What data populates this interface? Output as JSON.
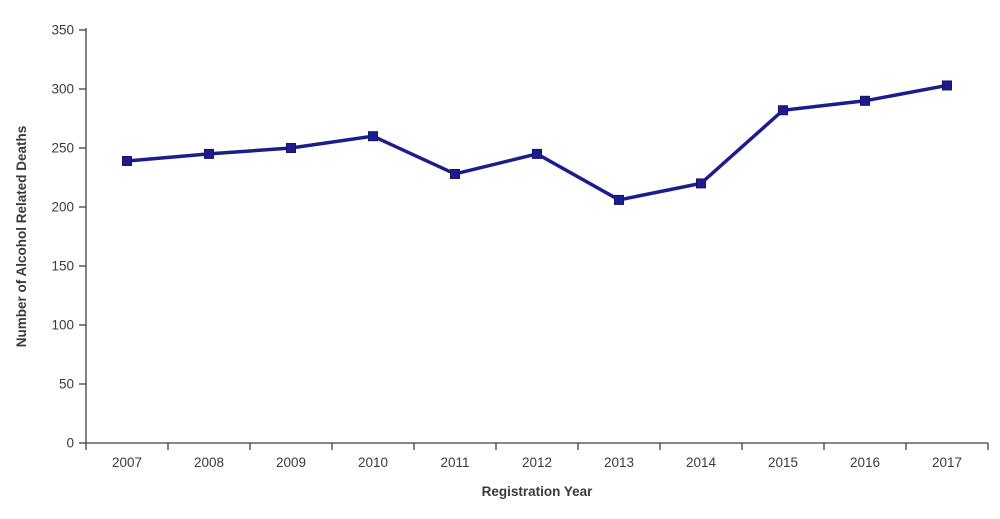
{
  "chart_data": {
    "type": "line",
    "title": "",
    "categories": [
      "2007",
      "2008",
      "2009",
      "2010",
      "2011",
      "2012",
      "2013",
      "2014",
      "2015",
      "2016",
      "2017"
    ],
    "series": [
      {
        "name": "Number of Alcohol Related Deaths",
        "values": [
          239,
          245,
          250,
          260,
          228,
          245,
          206,
          220,
          282,
          290,
          303
        ]
      }
    ],
    "xlabel": "Registration Year",
    "ylabel": "Number of Alcohol Related Deaths",
    "ylim": [
      0,
      350
    ],
    "ytick_step": 50,
    "ytick_labels": [
      "0",
      "50",
      "100",
      "150",
      "200",
      "250",
      "300",
      "350"
    ],
    "grid": false,
    "legend": false,
    "marker": "square",
    "colors": {
      "line": "#1c1c8c",
      "marker_fill": "#1c1c8c",
      "marker_stroke": "#14146b",
      "axis": "#404040",
      "text": "#3a3a3a",
      "background": "#ffffff"
    }
  }
}
